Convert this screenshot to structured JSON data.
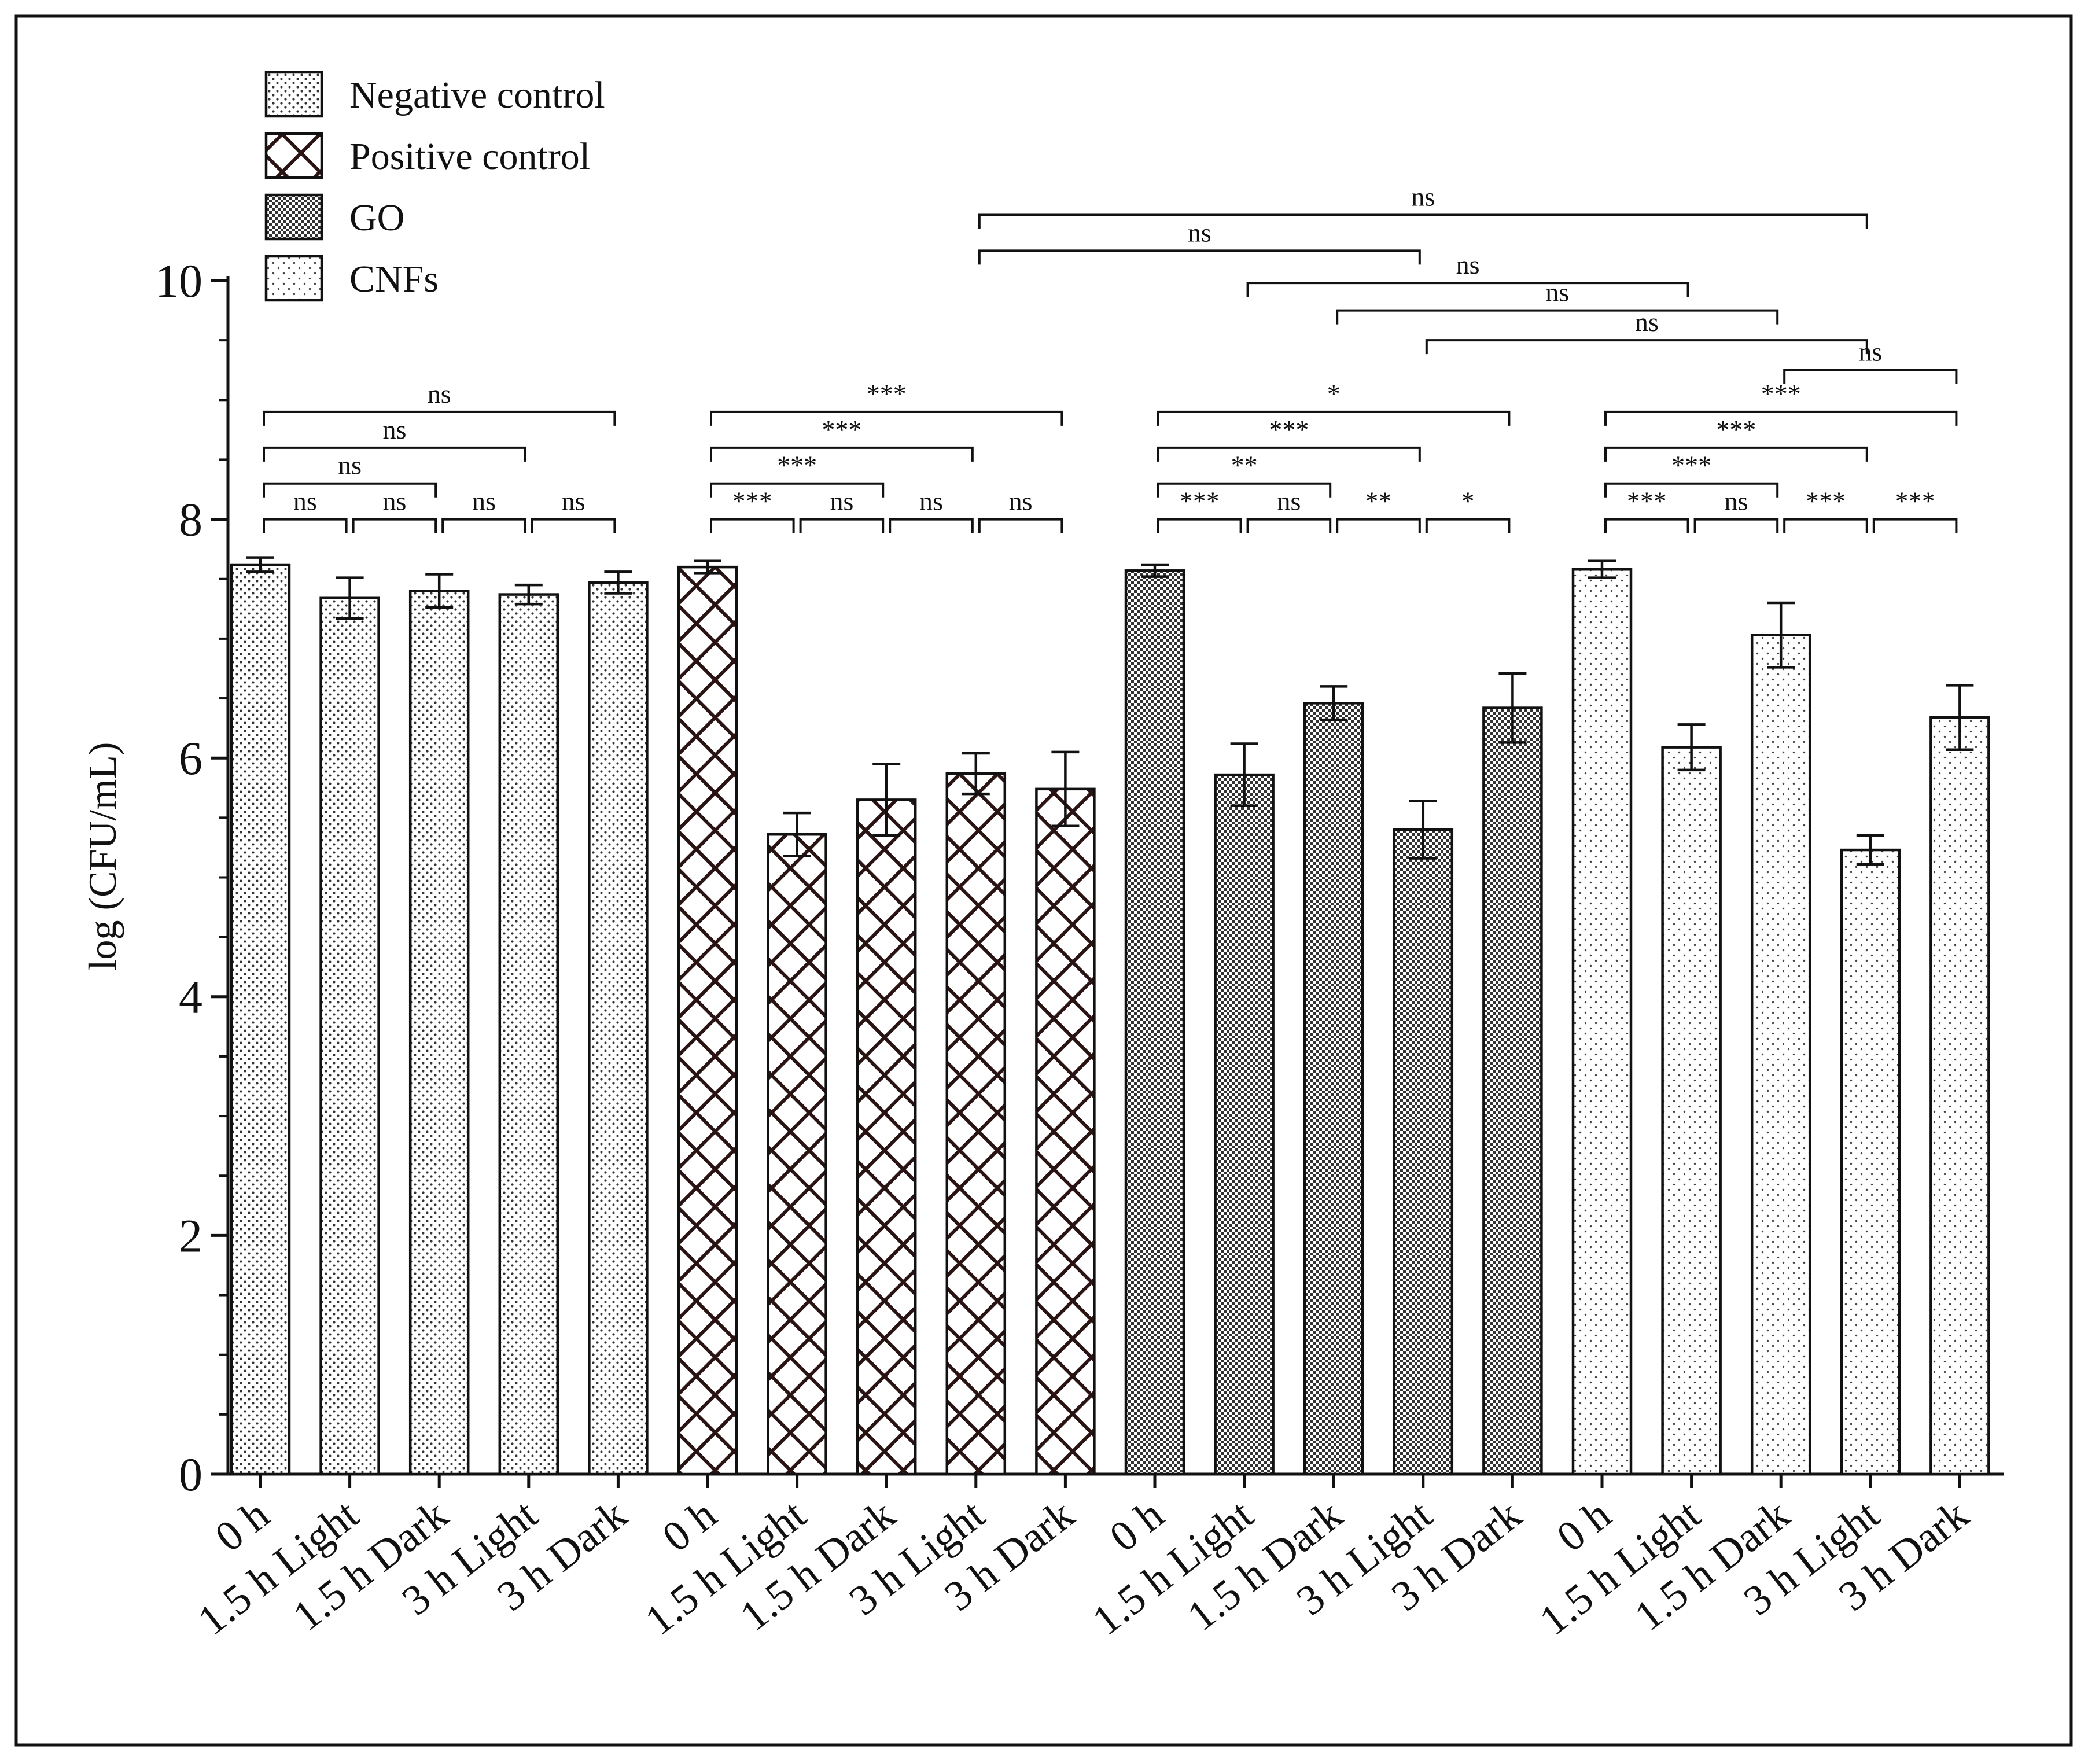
{
  "chart_data": {
    "type": "bar",
    "title": "",
    "xlabel": "",
    "ylabel": "log (CFU/mL)",
    "ylim": [
      0,
      10
    ],
    "yticks": [
      "0",
      "2",
      "4",
      "6",
      "8",
      "10"
    ],
    "minor_ytick_step": 0.5,
    "grid": false,
    "legend_position": "top-left",
    "categories": [
      "0 h",
      "1.5 h Light",
      "1.5 h Dark",
      "3 h Light",
      "3 h Dark"
    ],
    "series": [
      {
        "name": "Negative control",
        "pattern": "dots-dense",
        "values": [
          7.62,
          7.34,
          7.4,
          7.37,
          7.47
        ],
        "errors": [
          0.06,
          0.17,
          0.14,
          0.08,
          0.09
        ]
      },
      {
        "name": "Positive control",
        "pattern": "crosshatch",
        "values": [
          7.6,
          5.36,
          5.65,
          5.87,
          5.74
        ],
        "errors": [
          0.05,
          0.18,
          0.3,
          0.17,
          0.31
        ]
      },
      {
        "name": "GO",
        "pattern": "checker",
        "values": [
          7.57,
          5.86,
          6.46,
          5.4,
          6.42
        ],
        "errors": [
          0.05,
          0.26,
          0.14,
          0.24,
          0.29
        ]
      },
      {
        "name": "CNFs",
        "pattern": "dots-sparse",
        "values": [
          7.58,
          6.09,
          7.03,
          5.23,
          6.34
        ],
        "errors": [
          0.07,
          0.19,
          0.27,
          0.12,
          0.27
        ]
      }
    ],
    "significance": [
      {
        "from": [
          0,
          0
        ],
        "to": [
          0,
          1
        ],
        "label": "ns",
        "level": 8.0
      },
      {
        "from": [
          0,
          1
        ],
        "to": [
          0,
          2
        ],
        "label": "ns",
        "level": 8.0
      },
      {
        "from": [
          0,
          2
        ],
        "to": [
          0,
          3
        ],
        "label": "ns",
        "level": 8.0
      },
      {
        "from": [
          0,
          3
        ],
        "to": [
          0,
          4
        ],
        "label": "ns",
        "level": 8.0
      },
      {
        "from": [
          0,
          0
        ],
        "to": [
          0,
          2
        ],
        "label": "ns",
        "level": 8.3
      },
      {
        "from": [
          0,
          0
        ],
        "to": [
          0,
          3
        ],
        "label": "ns",
        "level": 8.6
      },
      {
        "from": [
          0,
          0
        ],
        "to": [
          0,
          4
        ],
        "label": "ns",
        "level": 8.9
      },
      {
        "from": [
          1,
          0
        ],
        "to": [
          1,
          1
        ],
        "label": "***",
        "level": 8.0
      },
      {
        "from": [
          1,
          1
        ],
        "to": [
          1,
          2
        ],
        "label": "ns",
        "level": 8.0
      },
      {
        "from": [
          1,
          2
        ],
        "to": [
          1,
          3
        ],
        "label": "ns",
        "level": 8.0
      },
      {
        "from": [
          1,
          3
        ],
        "to": [
          1,
          4
        ],
        "label": "ns",
        "level": 8.0
      },
      {
        "from": [
          1,
          0
        ],
        "to": [
          1,
          2
        ],
        "label": "***",
        "level": 8.3
      },
      {
        "from": [
          1,
          0
        ],
        "to": [
          1,
          3
        ],
        "label": "***",
        "level": 8.6
      },
      {
        "from": [
          1,
          0
        ],
        "to": [
          1,
          4
        ],
        "label": "***",
        "level": 8.9
      },
      {
        "from": [
          2,
          0
        ],
        "to": [
          2,
          1
        ],
        "label": "***",
        "level": 8.0
      },
      {
        "from": [
          2,
          1
        ],
        "to": [
          2,
          2
        ],
        "label": "ns",
        "level": 8.0
      },
      {
        "from": [
          2,
          2
        ],
        "to": [
          2,
          3
        ],
        "label": "**",
        "level": 8.0
      },
      {
        "from": [
          2,
          3
        ],
        "to": [
          2,
          4
        ],
        "label": "*",
        "level": 8.0
      },
      {
        "from": [
          2,
          0
        ],
        "to": [
          2,
          2
        ],
        "label": "**",
        "level": 8.3
      },
      {
        "from": [
          2,
          0
        ],
        "to": [
          2,
          3
        ],
        "label": "***",
        "level": 8.6
      },
      {
        "from": [
          2,
          0
        ],
        "to": [
          2,
          4
        ],
        "label": "*",
        "level": 8.9
      },
      {
        "from": [
          3,
          0
        ],
        "to": [
          3,
          1
        ],
        "label": "***",
        "level": 8.0
      },
      {
        "from": [
          3,
          1
        ],
        "to": [
          3,
          2
        ],
        "label": "ns",
        "level": 8.0
      },
      {
        "from": [
          3,
          2
        ],
        "to": [
          3,
          3
        ],
        "label": "***",
        "level": 8.0
      },
      {
        "from": [
          3,
          3
        ],
        "to": [
          3,
          4
        ],
        "label": "***",
        "level": 8.0
      },
      {
        "from": [
          3,
          0
        ],
        "to": [
          3,
          2
        ],
        "label": "***",
        "level": 8.3
      },
      {
        "from": [
          3,
          0
        ],
        "to": [
          3,
          3
        ],
        "label": "***",
        "level": 8.6
      },
      {
        "from": [
          3,
          0
        ],
        "to": [
          3,
          4
        ],
        "label": "***",
        "level": 8.9
      },
      {
        "from": [
          3,
          2
        ],
        "to": [
          3,
          4
        ],
        "label": "ns",
        "level": 9.25
      },
      {
        "from": [
          2,
          3
        ],
        "to": [
          3,
          3
        ],
        "label": "ns",
        "level": 9.5
      },
      {
        "from": [
          2,
          2
        ],
        "to": [
          3,
          2
        ],
        "label": "ns",
        "level": 9.75
      },
      {
        "from": [
          2,
          1
        ],
        "to": [
          3,
          1
        ],
        "label": "ns",
        "level": 9.98
      },
      {
        "from": [
          1,
          3
        ],
        "to": [
          2,
          3
        ],
        "label": "ns",
        "level": 10.25
      },
      {
        "from": [
          1,
          3
        ],
        "to": [
          3,
          3
        ],
        "label": "ns",
        "level": 10.55
      }
    ]
  }
}
